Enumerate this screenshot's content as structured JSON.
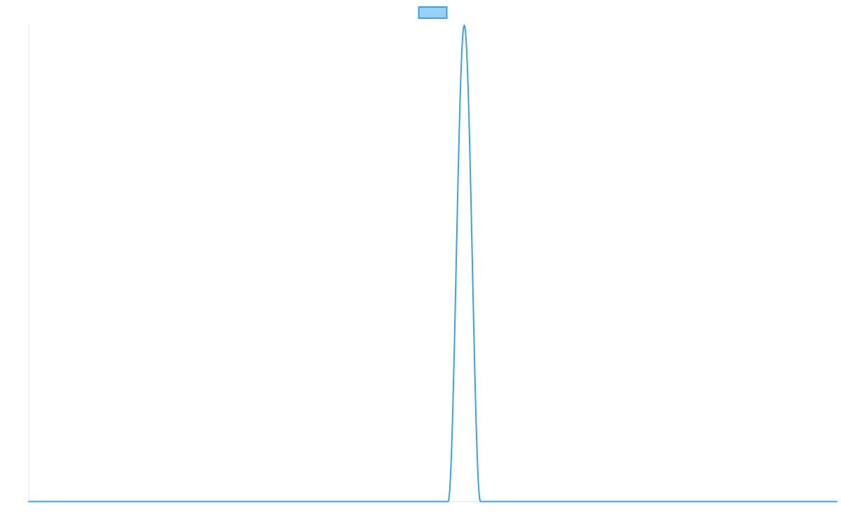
{
  "chart_data": {
    "type": "line",
    "title": "",
    "xlabel": "",
    "ylabel": "",
    "xlim": [
      0,
      1000
    ],
    "ylim": [
      0,
      1
    ],
    "grid": false,
    "legend_position": "top",
    "x_axis_line": true,
    "y_axis_line": true,
    "series": [
      {
        "name": "",
        "color": "#36a2eb",
        "fill_color": "#9ad0f5",
        "peak": {
          "x_center": 539,
          "x_start": 519,
          "x_end": 559,
          "y_max": 1
        }
      }
    ]
  }
}
